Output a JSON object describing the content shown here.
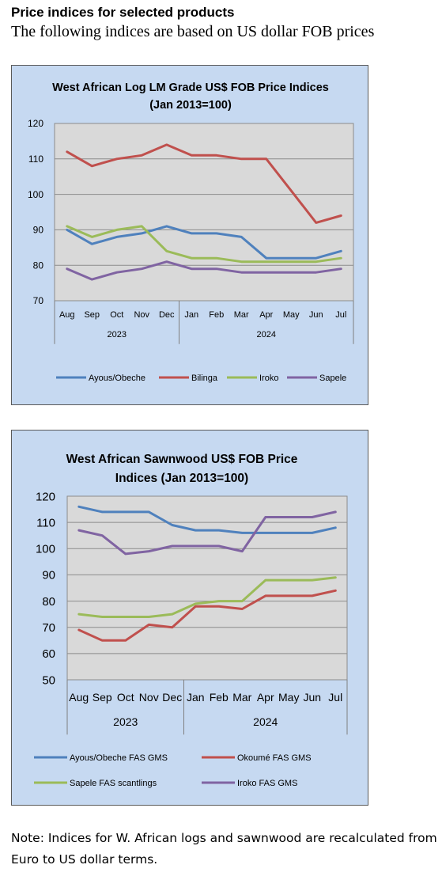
{
  "page": {
    "heading": "Price indices for selected products",
    "subheading": "The following indices are based on US dollar FOB prices",
    "note": "Note: Indices for W. African logs and sawnwood are recalculated from Euro to US dollar terms."
  },
  "chart_data": [
    {
      "type": "line",
      "title": "West African Log LM Grade US$ FOB Price Indices",
      "subtitle": "(Jan 2013=100)",
      "categories": [
        "Aug",
        "Sep",
        "Oct",
        "Nov",
        "Dec",
        "Jan",
        "Feb",
        "Mar",
        "Apr",
        "May",
        "Jun",
        "Jul"
      ],
      "year_groups": [
        {
          "label": "2023",
          "start": 0,
          "end": 4
        },
        {
          "label": "2024",
          "start": 5,
          "end": 11
        }
      ],
      "ylim": [
        70,
        120
      ],
      "yticks": [
        70,
        80,
        90,
        100,
        110,
        120
      ],
      "grid": true,
      "legend_position": "bottom",
      "series": [
        {
          "name": "Ayous/Obeche",
          "color": "#4f81bd",
          "values": [
            90,
            86,
            88,
            89,
            91,
            89,
            89,
            88,
            82,
            82,
            82,
            84
          ]
        },
        {
          "name": "Bilinga",
          "color": "#c0504d",
          "values": [
            112,
            108,
            110,
            111,
            114,
            111,
            111,
            110,
            110,
            101,
            92,
            94
          ]
        },
        {
          "name": "Iroko",
          "color": "#9bbb59",
          "values": [
            91,
            88,
            90,
            91,
            84,
            82,
            82,
            81,
            81,
            81,
            81,
            82
          ]
        },
        {
          "name": "Sapele",
          "color": "#8064a2",
          "values": [
            79,
            76,
            78,
            79,
            81,
            79,
            79,
            78,
            78,
            78,
            78,
            79
          ]
        }
      ]
    },
    {
      "type": "line",
      "title": "West African Sawnwood US$ FOB Price",
      "subtitle": "Indices (Jan 2013=100)",
      "categories": [
        "Aug",
        "Sep",
        "Oct",
        "Nov",
        "Dec",
        "Jan",
        "Feb",
        "Mar",
        "Apr",
        "May",
        "Jun",
        "Jul"
      ],
      "year_groups": [
        {
          "label": "2023",
          "start": 0,
          "end": 4
        },
        {
          "label": "2024",
          "start": 5,
          "end": 11
        }
      ],
      "ylim": [
        50,
        120
      ],
      "yticks": [
        50,
        60,
        70,
        80,
        90,
        100,
        110,
        120
      ],
      "grid": true,
      "legend_position": "bottom",
      "series": [
        {
          "name": "Ayous/Obeche  FAS GMS",
          "color": "#4f81bd",
          "values": [
            116,
            114,
            114,
            114,
            109,
            107,
            107,
            106,
            106,
            106,
            106,
            108
          ]
        },
        {
          "name": "Okoumé  FAS GMS",
          "color": "#c0504d",
          "values": [
            69,
            65,
            65,
            71,
            70,
            78,
            78,
            77,
            82,
            82,
            82,
            84
          ]
        },
        {
          "name": "Sapele FAS scantlings",
          "color": "#9bbb59",
          "values": [
            75,
            74,
            74,
            74,
            75,
            79,
            80,
            80,
            88,
            88,
            88,
            89
          ]
        },
        {
          "name": "Iroko FAS GMS",
          "color": "#8064a2",
          "values": [
            107,
            105,
            98,
            99,
            101,
            101,
            101,
            99,
            112,
            112,
            112,
            114
          ]
        }
      ]
    }
  ]
}
